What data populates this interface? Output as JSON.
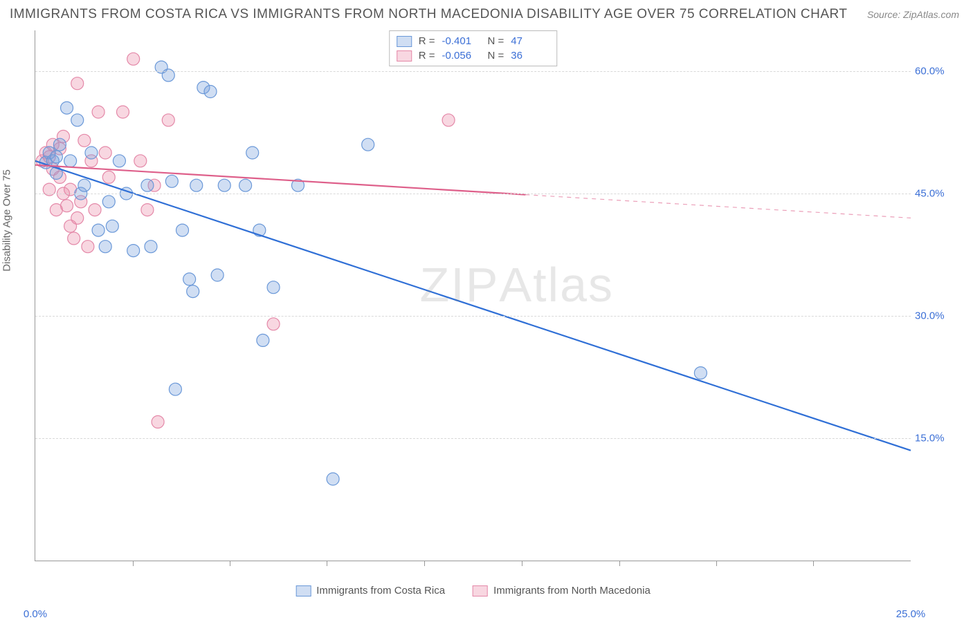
{
  "header": {
    "title": "IMMIGRANTS FROM COSTA RICA VS IMMIGRANTS FROM NORTH MACEDONIA DISABILITY AGE OVER 75 CORRELATION CHART",
    "source": "Source: ZipAtlas.com"
  },
  "chart": {
    "type": "scatter",
    "y_axis_label": "Disability Age Over 75",
    "background_color": "#ffffff",
    "grid_color": "#d8d8d8",
    "axis_color": "#999999",
    "xlim": [
      0,
      25
    ],
    "ylim": [
      0,
      65
    ],
    "x_ticks": [
      0,
      25
    ],
    "x_tick_labels": [
      "0.0%",
      "25.0%"
    ],
    "x_minor_ticks": [
      2.78,
      5.56,
      8.33,
      11.11,
      13.89,
      16.67,
      19.44,
      22.22
    ],
    "y_ticks": [
      15,
      30,
      45,
      60
    ],
    "y_tick_labels": [
      "15.0%",
      "30.0%",
      "45.0%",
      "60.0%"
    ],
    "y_tick_color": "#3b6fd6",
    "x_tick_color": "#3b6fd6",
    "marker_radius": 9,
    "marker_stroke_width": 1.2,
    "line_width": 2.2,
    "watermark": "ZIPAtlas",
    "series": [
      {
        "name": "Immigrants from Costa Rica",
        "color_fill": "rgba(120,160,220,0.35)",
        "color_stroke": "#6a98d8",
        "line_color": "#2f6fd6",
        "R": "-0.401",
        "N": "47",
        "trend": {
          "x1": 0,
          "y1": 49,
          "x2": 25,
          "y2": 13.5,
          "solid_end_x": 25
        },
        "points": [
          [
            0.3,
            48.8
          ],
          [
            0.4,
            50.0
          ],
          [
            0.5,
            49.0
          ],
          [
            0.6,
            49.5
          ],
          [
            0.7,
            51.0
          ],
          [
            0.6,
            47.5
          ],
          [
            0.9,
            55.5
          ],
          [
            1.0,
            49.0
          ],
          [
            1.2,
            54.0
          ],
          [
            1.3,
            45.0
          ],
          [
            1.4,
            46.0
          ],
          [
            1.6,
            50.0
          ],
          [
            1.8,
            40.5
          ],
          [
            2.0,
            38.5
          ],
          [
            2.1,
            44.0
          ],
          [
            2.2,
            41.0
          ],
          [
            2.4,
            49.0
          ],
          [
            2.6,
            45.0
          ],
          [
            2.8,
            38.0
          ],
          [
            3.2,
            46.0
          ],
          [
            3.3,
            38.5
          ],
          [
            3.6,
            60.5
          ],
          [
            3.8,
            59.5
          ],
          [
            3.9,
            46.5
          ],
          [
            4.0,
            21.0
          ],
          [
            4.2,
            40.5
          ],
          [
            4.4,
            34.5
          ],
          [
            4.5,
            33.0
          ],
          [
            4.6,
            46.0
          ],
          [
            4.8,
            58.0
          ],
          [
            5.0,
            57.5
          ],
          [
            5.2,
            35.0
          ],
          [
            5.4,
            46.0
          ],
          [
            6.0,
            46.0
          ],
          [
            6.2,
            50.0
          ],
          [
            6.4,
            40.5
          ],
          [
            6.5,
            27.0
          ],
          [
            6.8,
            33.5
          ],
          [
            7.5,
            46.0
          ],
          [
            8.5,
            10.0
          ],
          [
            9.5,
            51.0
          ],
          [
            19.0,
            23.0
          ]
        ]
      },
      {
        "name": "Immigrants from North Macedonia",
        "color_fill": "rgba(235,140,170,0.35)",
        "color_stroke": "#e488a8",
        "line_color": "#de5f8a",
        "R": "-0.056",
        "N": "36",
        "trend": {
          "x1": 0,
          "y1": 48.5,
          "x2": 25,
          "y2": 42.0,
          "solid_end_x": 14
        },
        "points": [
          [
            0.2,
            49.0
          ],
          [
            0.3,
            50.0
          ],
          [
            0.4,
            49.5
          ],
          [
            0.4,
            45.5
          ],
          [
            0.5,
            51.0
          ],
          [
            0.5,
            48.0
          ],
          [
            0.6,
            43.0
          ],
          [
            0.7,
            47.0
          ],
          [
            0.7,
            50.5
          ],
          [
            0.8,
            52.0
          ],
          [
            0.8,
            45.0
          ],
          [
            0.9,
            43.5
          ],
          [
            1.0,
            41.0
          ],
          [
            1.0,
            45.5
          ],
          [
            1.1,
            39.5
          ],
          [
            1.2,
            42.0
          ],
          [
            1.2,
            58.5
          ],
          [
            1.3,
            44.0
          ],
          [
            1.4,
            51.5
          ],
          [
            1.5,
            38.5
          ],
          [
            1.6,
            49.0
          ],
          [
            1.7,
            43.0
          ],
          [
            1.8,
            55.0
          ],
          [
            2.0,
            50.0
          ],
          [
            2.1,
            47.0
          ],
          [
            2.5,
            55.0
          ],
          [
            2.8,
            61.5
          ],
          [
            3.0,
            49.0
          ],
          [
            3.2,
            43.0
          ],
          [
            3.4,
            46.0
          ],
          [
            3.5,
            17.0
          ],
          [
            3.8,
            54.0
          ],
          [
            6.8,
            29.0
          ],
          [
            11.8,
            54.0
          ]
        ]
      }
    ],
    "bottom_legend": [
      "Immigrants from Costa Rica",
      "Immigrants from North Macedonia"
    ]
  }
}
